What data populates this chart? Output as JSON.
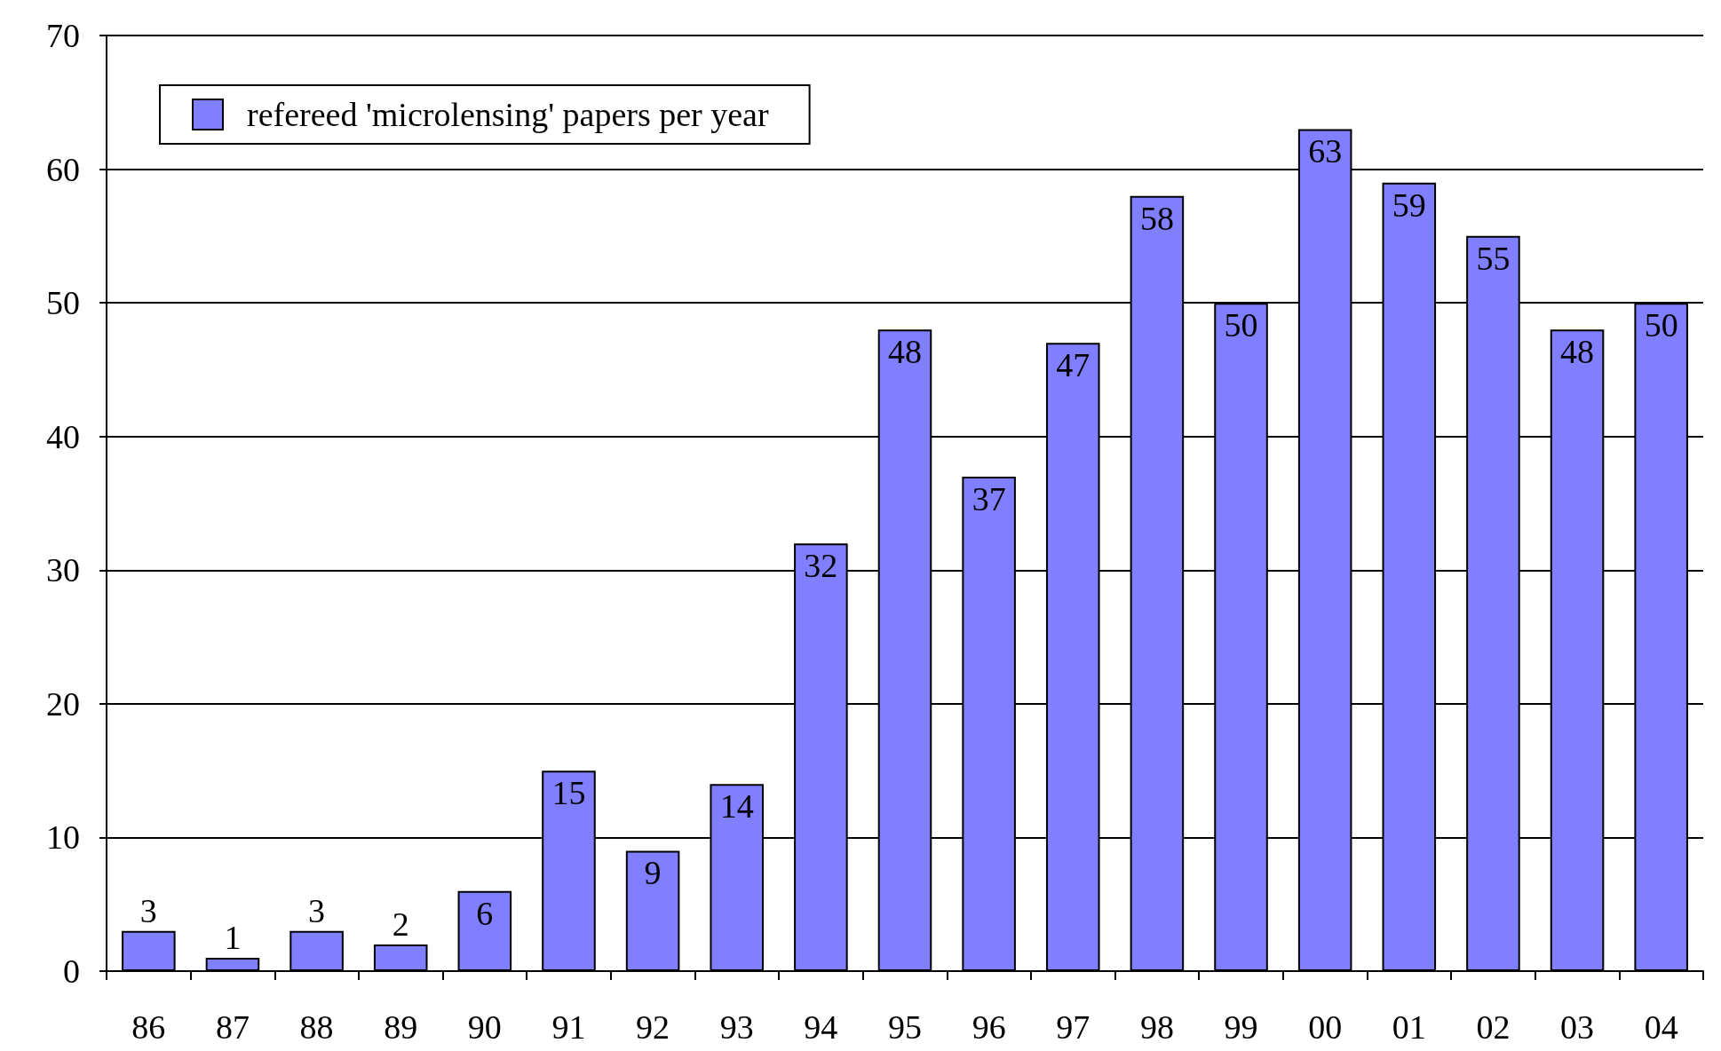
{
  "chart_data": {
    "type": "bar",
    "categories": [
      "86",
      "87",
      "88",
      "89",
      "90",
      "91",
      "92",
      "93",
      "94",
      "95",
      "96",
      "97",
      "98",
      "99",
      "00",
      "01",
      "02",
      "03",
      "04"
    ],
    "series": [
      {
        "name": "refereed 'microlensing' papers per year",
        "color": "#7f7fff",
        "values": [
          3,
          1,
          3,
          2,
          6,
          15,
          9,
          14,
          32,
          48,
          37,
          47,
          58,
          50,
          63,
          59,
          55,
          48,
          50
        ]
      }
    ],
    "ylim": [
      0,
      70
    ],
    "yticks": [
      0,
      10,
      20,
      30,
      40,
      50,
      60,
      70
    ],
    "grid": "y",
    "legend": "top left",
    "data_labels": true
  }
}
